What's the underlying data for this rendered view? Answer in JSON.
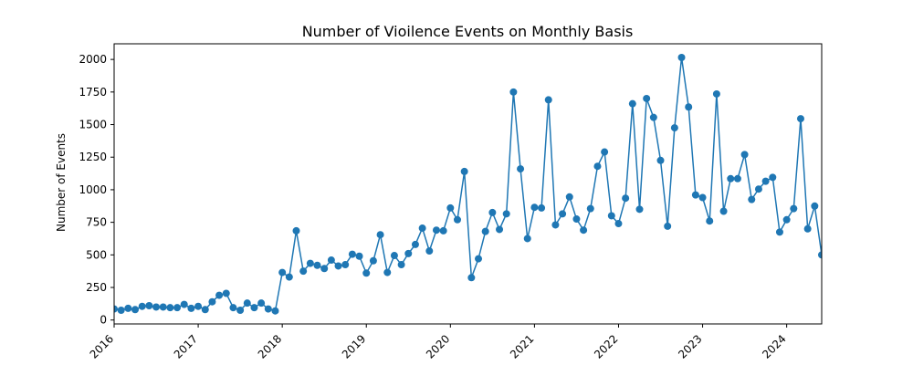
{
  "chart_data": {
    "type": "line",
    "title": "Number of Vioilence Events on Monthly Basis",
    "xlabel": "",
    "ylabel": "Number of Events",
    "x_start": "2016-01",
    "x_end": "2024-06",
    "xlim": [
      "2016-01",
      "2024-06"
    ],
    "ylim": [
      -30,
      2120
    ],
    "xticks": [
      "2016",
      "2017",
      "2018",
      "2019",
      "2020",
      "2021",
      "2022",
      "2023",
      "2024"
    ],
    "yticks": [
      0,
      250,
      500,
      750,
      1000,
      1250,
      1500,
      1750,
      2000
    ],
    "grid": false,
    "legend": "none",
    "marker": "circle",
    "color": "#1f77b4",
    "series": [
      {
        "values": [
          85,
          75,
          90,
          80,
          105,
          110,
          100,
          100,
          95,
          95,
          120,
          90,
          105,
          80,
          140,
          190,
          205,
          95,
          75,
          130,
          95,
          130,
          85,
          70,
          365,
          330,
          685,
          375,
          435,
          420,
          395,
          460,
          415,
          425,
          505,
          490,
          360,
          455,
          655,
          365,
          495,
          425,
          510,
          580,
          705,
          530,
          690,
          685,
          860,
          770,
          1140,
          325,
          470,
          680,
          825,
          695,
          815,
          1750,
          1160,
          625,
          865,
          860,
          1690,
          730,
          815,
          945,
          775,
          690,
          855,
          1180,
          1290,
          800,
          740,
          935,
          1660,
          850,
          1700,
          1555,
          1225,
          720,
          1475,
          2015,
          1635,
          960,
          940,
          760,
          1735,
          835,
          1085,
          1085,
          1270,
          925,
          1005,
          1065,
          1095,
          675,
          770,
          855,
          1545,
          700,
          875,
          500
        ]
      }
    ]
  }
}
